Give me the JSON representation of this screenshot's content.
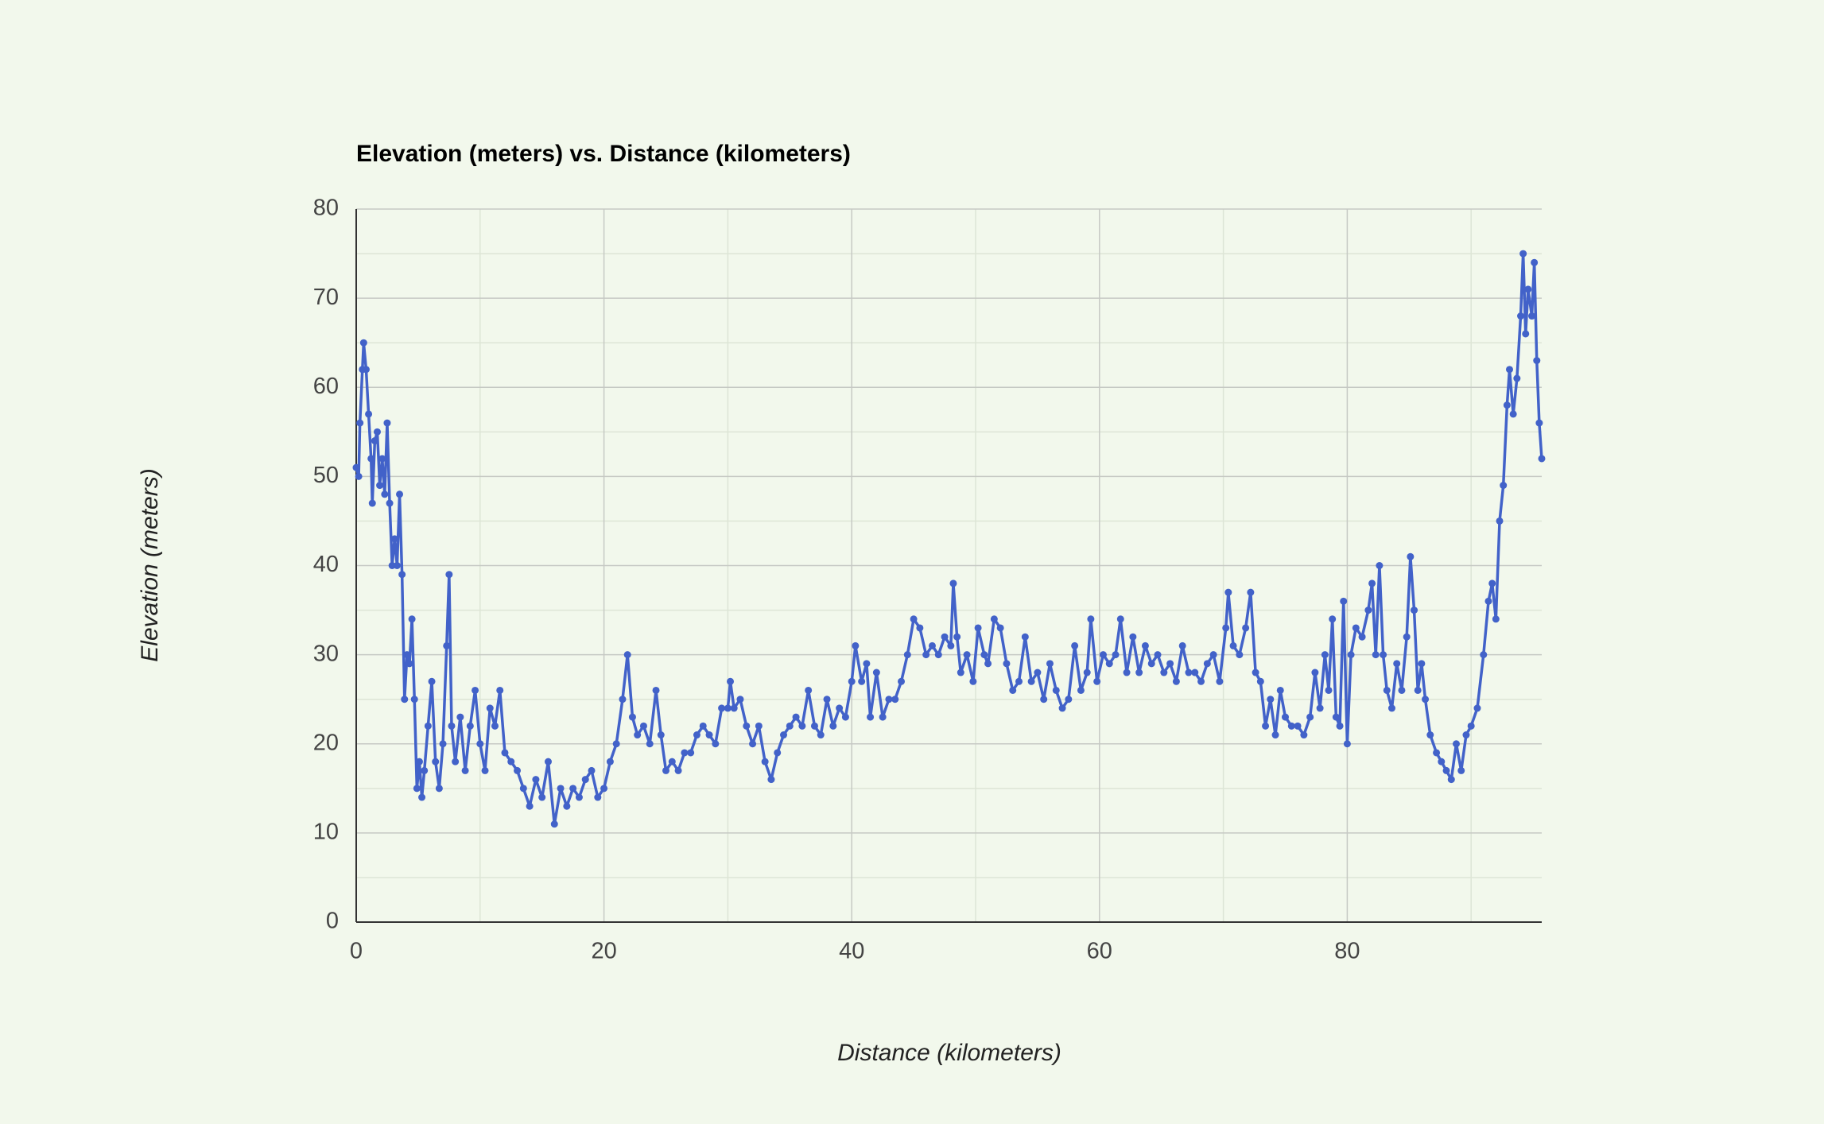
{
  "chart_data": {
    "type": "line",
    "title": "Elevation (meters) vs. Distance (kilometers)",
    "x_label": "Distance (kilometers)",
    "y_label": "Elevation (meters)",
    "color": "#4262c9",
    "grid": true,
    "xlim": [
      0,
      95.7
    ],
    "ylim": [
      0,
      80
    ],
    "xticks": [
      0,
      20,
      40,
      60,
      80
    ],
    "yticks": [
      0,
      10,
      20,
      30,
      40,
      50,
      60,
      70,
      80
    ],
    "x_minor_ticks": [
      10,
      30,
      50,
      70,
      90
    ],
    "y_minor_ticks": [
      5,
      15,
      25,
      35,
      45,
      55,
      65,
      75
    ],
    "x": [
      0,
      0.2,
      0.3,
      0.5,
      0.6,
      0.8,
      1.0,
      1.2,
      1.3,
      1.5,
      1.7,
      1.9,
      2.1,
      2.3,
      2.5,
      2.7,
      2.9,
      3.1,
      3.3,
      3.5,
      3.7,
      3.9,
      4.1,
      4.3,
      4.5,
      4.7,
      4.9,
      5.1,
      5.3,
      5.5,
      5.8,
      6.1,
      6.4,
      6.7,
      7.0,
      7.3,
      7.5,
      7.7,
      8.0,
      8.4,
      8.8,
      9.2,
      9.6,
      10.0,
      10.4,
      10.8,
      11.2,
      11.6,
      12.0,
      12.5,
      13.0,
      13.5,
      14.0,
      14.5,
      15.0,
      15.5,
      16.0,
      16.5,
      17.0,
      17.5,
      18.0,
      18.5,
      19.0,
      19.5,
      20.0,
      20.5,
      21.0,
      21.5,
      21.9,
      22.3,
      22.7,
      23.2,
      23.7,
      24.2,
      24.6,
      25.0,
      25.5,
      26.0,
      26.5,
      27.0,
      27.5,
      28.0,
      28.5,
      29.0,
      29.5,
      30.0,
      30.2,
      30.5,
      31.0,
      31.5,
      32.0,
      32.5,
      33.0,
      33.5,
      34.0,
      34.5,
      35.0,
      35.5,
      36.0,
      36.5,
      37.0,
      37.5,
      38.0,
      38.5,
      39.0,
      39.5,
      40.0,
      40.3,
      40.8,
      41.2,
      41.5,
      42.0,
      42.5,
      43.0,
      43.5,
      44.0,
      44.5,
      45.0,
      45.5,
      46.0,
      46.5,
      47.0,
      47.5,
      48.0,
      48.2,
      48.5,
      48.8,
      49.3,
      49.8,
      50.2,
      50.7,
      51.0,
      51.5,
      52.0,
      52.5,
      53.0,
      53.5,
      54.0,
      54.5,
      55.0,
      55.5,
      56.0,
      56.5,
      57.0,
      57.5,
      58.0,
      58.5,
      59.0,
      59.3,
      59.8,
      60.3,
      60.8,
      61.3,
      61.7,
      62.2,
      62.7,
      63.2,
      63.7,
      64.2,
      64.7,
      65.2,
      65.7,
      66.2,
      66.7,
      67.2,
      67.7,
      68.2,
      68.7,
      69.2,
      69.7,
      70.2,
      70.4,
      70.8,
      71.3,
      71.8,
      72.2,
      72.6,
      73.0,
      73.4,
      73.8,
      74.2,
      74.6,
      75.0,
      75.5,
      76.0,
      76.5,
      77.0,
      77.4,
      77.8,
      78.2,
      78.5,
      78.8,
      79.1,
      79.4,
      79.7,
      80.0,
      80.3,
      80.7,
      81.2,
      81.7,
      82.0,
      82.3,
      82.6,
      82.9,
      83.2,
      83.6,
      84.0,
      84.4,
      84.8,
      85.1,
      85.4,
      85.7,
      86.0,
      86.3,
      86.7,
      87.2,
      87.6,
      88.0,
      88.4,
      88.8,
      89.2,
      89.6,
      90.0,
      90.5,
      91.0,
      91.4,
      91.7,
      92.0,
      92.3,
      92.6,
      92.9,
      93.1,
      93.4,
      93.7,
      94.0,
      94.2,
      94.4,
      94.6,
      94.9,
      95.1,
      95.3,
      95.5,
      95.7
    ],
    "values": [
      51,
      50,
      56,
      62,
      65,
      62,
      57,
      52,
      47,
      54,
      55,
      49,
      52,
      48,
      56,
      47,
      40,
      43,
      40,
      48,
      39,
      25,
      30,
      29,
      34,
      25,
      15,
      18,
      14,
      17,
      22,
      27,
      18,
      15,
      20,
      31,
      39,
      22,
      18,
      23,
      17,
      22,
      26,
      20,
      17,
      24,
      22,
      26,
      19,
      18,
      17,
      15,
      13,
      16,
      14,
      18,
      11,
      15,
      13,
      15,
      14,
      16,
      17,
      14,
      15,
      18,
      20,
      25,
      30,
      23,
      21,
      22,
      20,
      26,
      21,
      17,
      18,
      17,
      19,
      19,
      21,
      22,
      21,
      20,
      24,
      24,
      27,
      24,
      25,
      22,
      20,
      22,
      18,
      16,
      19,
      21,
      22,
      23,
      22,
      26,
      22,
      21,
      25,
      22,
      24,
      23,
      27,
      31,
      27,
      29,
      23,
      28,
      23,
      25,
      25,
      27,
      30,
      34,
      33,
      30,
      31,
      30,
      32,
      31,
      38,
      32,
      28,
      30,
      27,
      33,
      30,
      29,
      34,
      33,
      29,
      26,
      27,
      32,
      27,
      28,
      25,
      29,
      26,
      24,
      25,
      31,
      26,
      28,
      34,
      27,
      30,
      29,
      30,
      34,
      28,
      32,
      28,
      31,
      29,
      30,
      28,
      29,
      27,
      31,
      28,
      28,
      27,
      29,
      30,
      27,
      33,
      37,
      31,
      30,
      33,
      37,
      28,
      27,
      22,
      25,
      21,
      26,
      23,
      22,
      22,
      21,
      23,
      28,
      24,
      30,
      26,
      34,
      23,
      22,
      36,
      20,
      30,
      33,
      32,
      35,
      38,
      30,
      40,
      30,
      26,
      24,
      29,
      26,
      32,
      41,
      35,
      26,
      29,
      25,
      21,
      19,
      18,
      17,
      16,
      20,
      17,
      21,
      22,
      24,
      30,
      36,
      38,
      34,
      45,
      49,
      58,
      62,
      57,
      61,
      68,
      75,
      66,
      71,
      68,
      74,
      63,
      56,
      52
    ]
  }
}
